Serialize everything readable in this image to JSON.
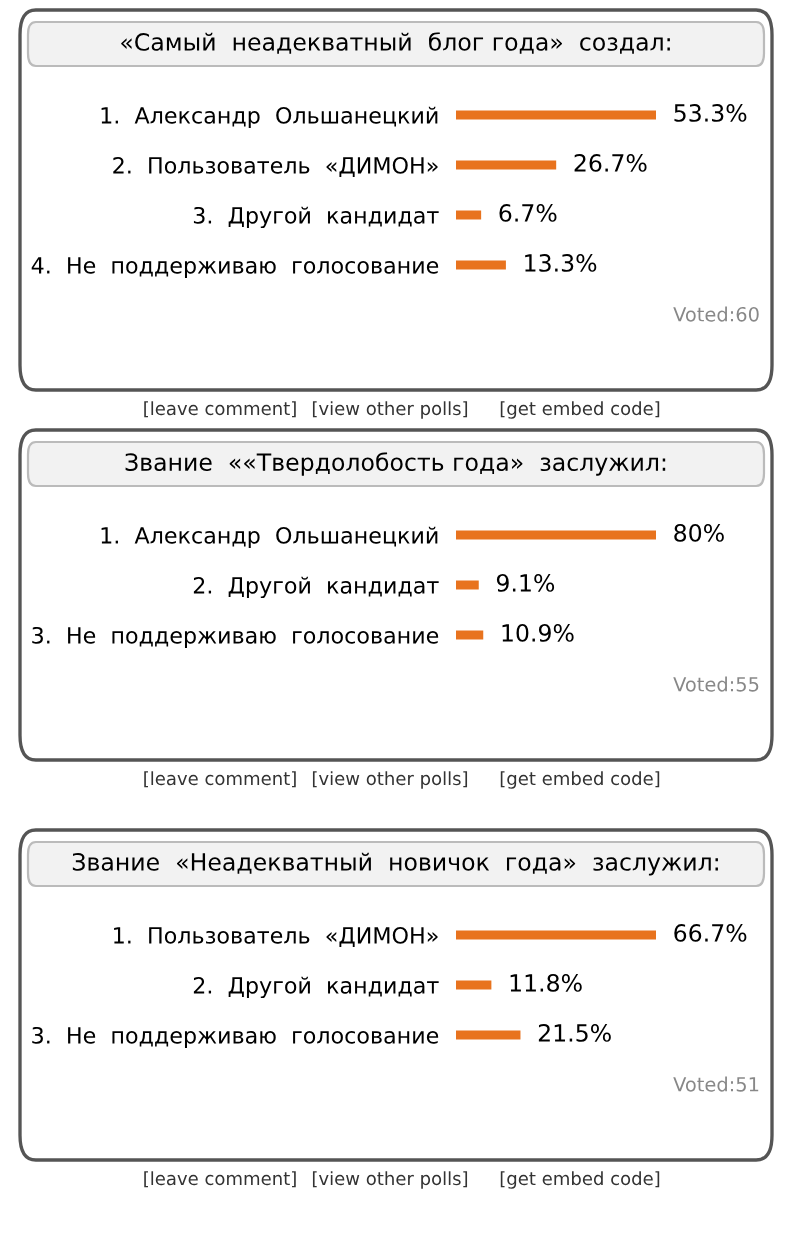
{
  "chart_data": [
    {
      "type": "bar",
      "orientation": "horizontal",
      "title": "«Самый  неадекватный  блог года»  создал:",
      "categories": [
        "1.  Александр  Ольшанецкий",
        "2.  Пользователь  «ДИМОН»",
        "3.  Другой  кандидат",
        "4.  Не  поддерживаю  голосование"
      ],
      "values": [
        53.3,
        26.7,
        6.7,
        13.3
      ],
      "color": "#e8731e",
      "tick_labels": "y",
      "data_labels": true,
      "value_labels": [
        "53.3%",
        "26.7%",
        "6.7%",
        "13.3%"
      ],
      "grid": false,
      "legend": false,
      "annotations": [
        "Voted:60",
        "[leave comment]",
        "[view other polls]",
        "[get embed code]"
      ]
    },
    {
      "type": "bar",
      "orientation": "horizontal",
      "title": "Звание  ««Твердолобость года»  заслужил:",
      "categories": [
        "1.  Александр  Ольшанецкий",
        "2.  Другой  кандидат",
        "3.  Не  поддерживаю  голосование"
      ],
      "values": [
        80,
        9.1,
        10.9
      ],
      "color": "#e8731e",
      "tick_labels": "y",
      "data_labels": true,
      "value_labels": [
        "80%",
        "9.1%",
        "10.9%"
      ],
      "grid": false,
      "legend": false,
      "annotations": [
        "Voted:55",
        "[leave comment]",
        "[view other polls]",
        "[get embed code]"
      ]
    },
    {
      "type": "bar",
      "orientation": "horizontal",
      "title": "Звание  «Неадекватный  новичок  года»  заслужил:",
      "categories": [
        "1.  Пользователь  «ДИМОН»",
        "2.  Другой  кандидат",
        "3.  Не  поддерживаю  голосование"
      ],
      "values": [
        66.7,
        11.8,
        21.5
      ],
      "color": "#e8731e",
      "tick_labels": "y",
      "data_labels": true,
      "value_labels": [
        "66.7%",
        "11.8%",
        "21.5%"
      ],
      "grid": false,
      "legend": false,
      "annotations": [
        "Voted:51",
        "[leave comment]",
        "[view other polls]",
        "[get embed code]"
      ]
    }
  ]
}
